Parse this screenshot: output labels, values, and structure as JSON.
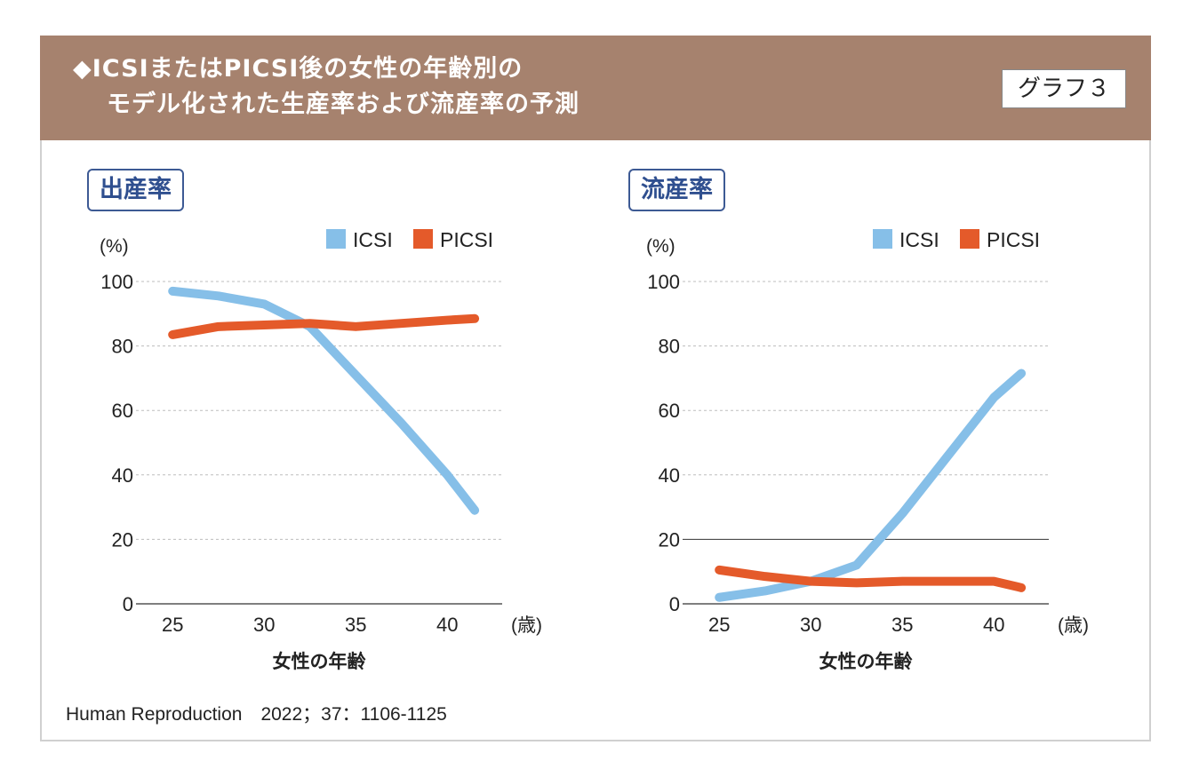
{
  "title": {
    "line1": "◆ICSIまたはPICSI後の女性の年齢別の",
    "line2": "モデル化された生産率および流産率の予測"
  },
  "badge": "グラフ３",
  "source": "Human Reproduction　2022；37：1106-1125",
  "colors": {
    "icsi": "#86bfe8",
    "picsi": "#e45a2a",
    "header": "#a6826e",
    "tag": "#2f4f8f"
  },
  "chart_data": [
    {
      "type": "line",
      "panel_label": "出産率",
      "yunit": "(%)",
      "xunit": "(歳)",
      "xlabel": "女性の年齢",
      "legend_position": "top-right",
      "x": [
        25,
        27.5,
        30,
        32.5,
        35,
        37.5,
        40,
        41.5
      ],
      "xticks": [
        25,
        30,
        35,
        40
      ],
      "yticks": [
        0,
        20,
        40,
        60,
        80,
        100
      ],
      "ylim": [
        0,
        100
      ],
      "xlim": [
        23,
        43
      ],
      "series": [
        {
          "name": "ICSI",
          "values": [
            97,
            95.5,
            93,
            86,
            71,
            56,
            40,
            29
          ]
        },
        {
          "name": "PICSI",
          "values": [
            83.5,
            86,
            86.5,
            87,
            86,
            87,
            88,
            88.5
          ]
        }
      ]
    },
    {
      "type": "line",
      "panel_label": "流産率",
      "yunit": "(%)",
      "xunit": "(歳)",
      "xlabel": "女性の年齢",
      "legend_position": "top-right",
      "x": [
        25,
        27.5,
        30,
        32.5,
        35,
        37.5,
        40,
        41.5
      ],
      "xticks": [
        25,
        30,
        35,
        40
      ],
      "yticks": [
        0,
        20,
        40,
        60,
        80,
        100
      ],
      "ylim": [
        0,
        100
      ],
      "xlim": [
        23,
        43
      ],
      "series": [
        {
          "name": "ICSI",
          "values": [
            2,
            4,
            7,
            12,
            28,
            46,
            64,
            71.5
          ]
        },
        {
          "name": "PICSI",
          "values": [
            10.5,
            8.5,
            7,
            6.5,
            7,
            7,
            7,
            5
          ]
        }
      ]
    }
  ]
}
